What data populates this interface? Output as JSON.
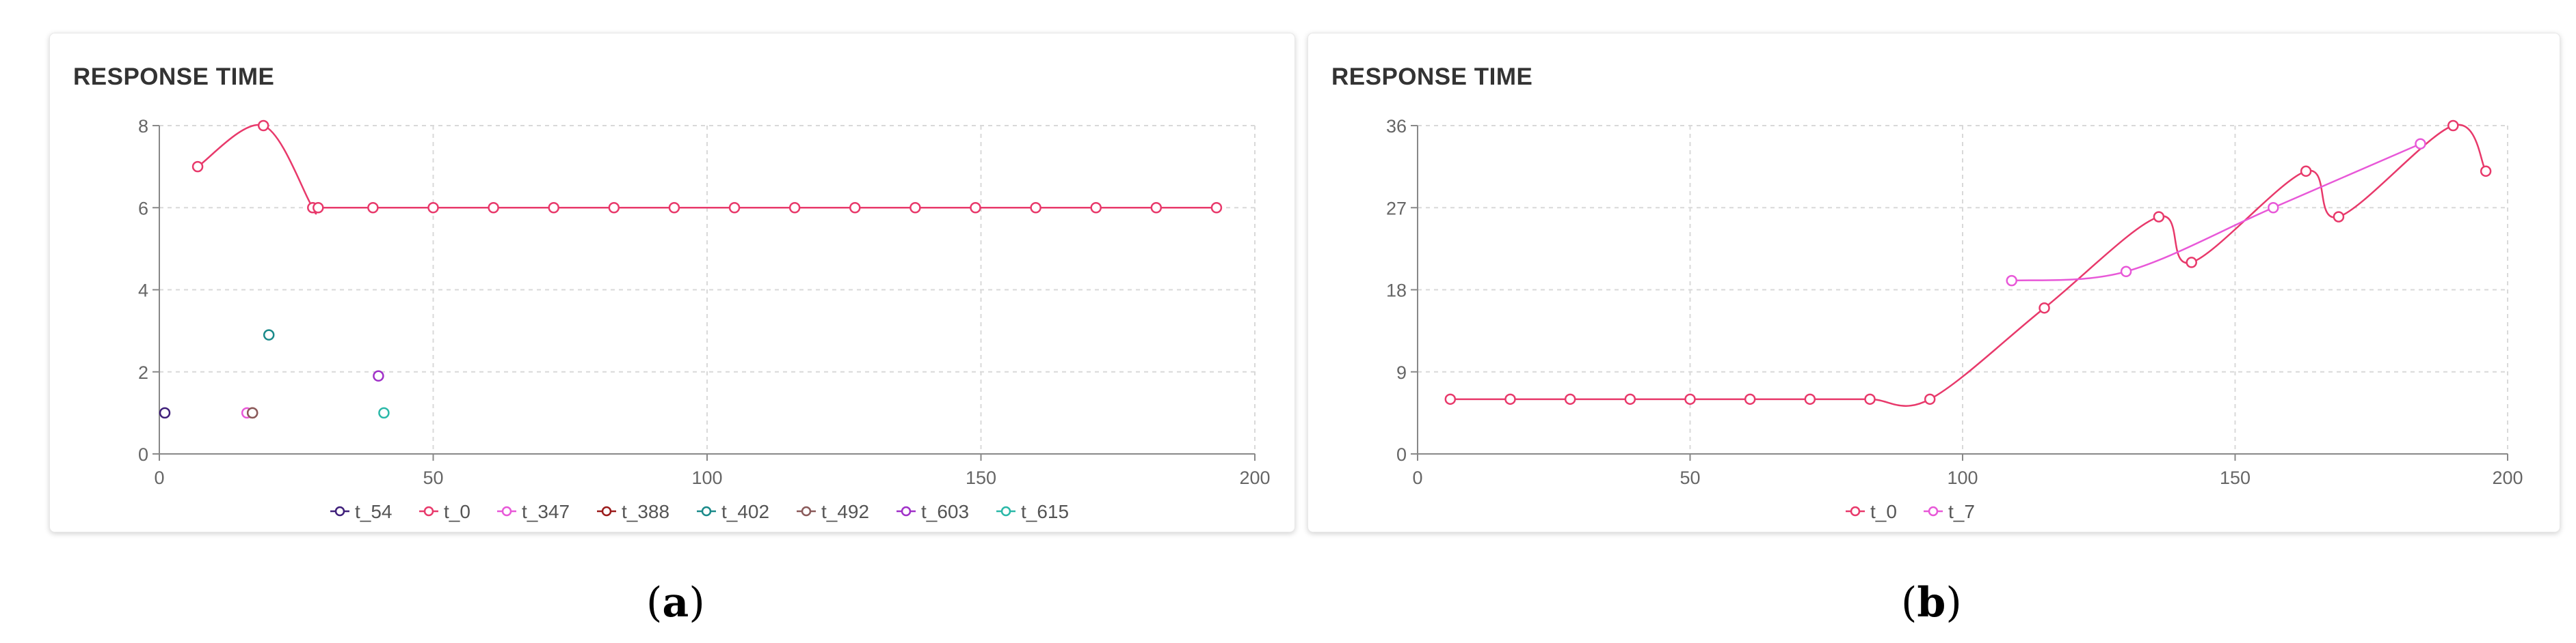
{
  "colors": {
    "t_54": "#3f1f7a",
    "t_0": "#e8396b",
    "t_347": "#e858d8",
    "t_388": "#9b1b1b",
    "t_402": "#1a8a8a",
    "t_492": "#8a5a5a",
    "t_603": "#a030c8",
    "t_615": "#2ab8a8",
    "t_7": "#e858d8"
  },
  "chart_data": [
    {
      "panel": "a",
      "type": "line",
      "title": "RESPONSE TIME",
      "xlabel": "",
      "ylabel": "",
      "xlim": [
        0,
        200
      ],
      "ylim": [
        0,
        8
      ],
      "xticks": [
        "0",
        "50",
        "100",
        "150",
        "200"
      ],
      "yticks": [
        "0",
        "2",
        "4",
        "6",
        "8"
      ],
      "grid": true,
      "legend_position": "bottom",
      "series": [
        {
          "name": "t_54",
          "x": [
            1
          ],
          "y": [
            1
          ],
          "line": false
        },
        {
          "name": "t_0",
          "x": [
            7,
            19,
            28,
            29,
            39,
            50,
            61,
            72,
            83,
            94,
            105,
            116,
            127,
            138,
            149,
            160,
            171,
            182,
            193
          ],
          "y": [
            7,
            8,
            6,
            6,
            6,
            6,
            6,
            6,
            6,
            6,
            6,
            6,
            6,
            6,
            6,
            6,
            6,
            6,
            6
          ],
          "line": true
        },
        {
          "name": "t_347",
          "x": [
            16
          ],
          "y": [
            1
          ],
          "line": false
        },
        {
          "name": "t_388",
          "x": [
            17
          ],
          "y": [
            1
          ],
          "line": false
        },
        {
          "name": "t_402",
          "x": [
            20
          ],
          "y": [
            2.9
          ],
          "line": false
        },
        {
          "name": "t_492",
          "x": [
            17
          ],
          "y": [
            1
          ],
          "line": false
        },
        {
          "name": "t_603",
          "x": [
            40
          ],
          "y": [
            1.9
          ],
          "line": false
        },
        {
          "name": "t_615",
          "x": [
            41
          ],
          "y": [
            1
          ],
          "line": false
        }
      ]
    },
    {
      "panel": "b",
      "type": "line",
      "title": "RESPONSE TIME",
      "xlabel": "",
      "ylabel": "",
      "xlim": [
        0,
        200
      ],
      "ylim": [
        0,
        36
      ],
      "xticks": [
        "0",
        "50",
        "100",
        "150",
        "200"
      ],
      "yticks": [
        "0",
        "9",
        "18",
        "27",
        "36"
      ],
      "grid": true,
      "legend_position": "bottom",
      "series": [
        {
          "name": "t_0",
          "x": [
            6,
            17,
            28,
            39,
            50,
            61,
            72,
            83,
            94,
            115,
            136,
            142,
            163,
            169,
            190,
            196
          ],
          "y": [
            6,
            6,
            6,
            6,
            6,
            6,
            6,
            6,
            6,
            16,
            26,
            21,
            31,
            26,
            36,
            31
          ],
          "line": true
        },
        {
          "name": "t_7",
          "x": [
            109,
            130,
            157,
            184
          ],
          "y": [
            19,
            20,
            27,
            34
          ],
          "line": true
        }
      ]
    }
  ],
  "captions": {
    "a_open": "(",
    "a_letter": "a",
    "a_close": ")",
    "b_open": "(",
    "b_letter": "b",
    "b_close": ")"
  }
}
